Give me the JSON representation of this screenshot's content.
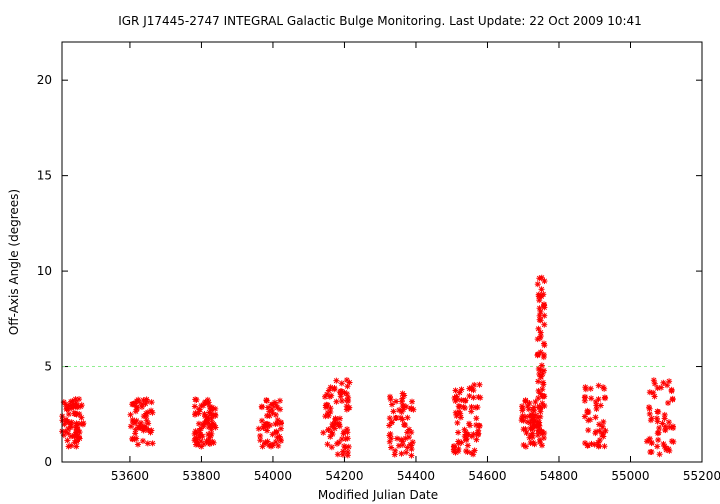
{
  "chart_data": {
    "type": "scatter",
    "title": "IGR J17445-2747   INTEGRAL Galactic Bulge Monitoring.  Last Update: 22 Oct 2009 10:41",
    "xlabel": "Modified Julian Date",
    "ylabel": "Off-Axis Angle (degrees)",
    "xlim": [
      53410,
      55200
    ],
    "ylim": [
      0,
      22
    ],
    "x_ticks": [
      53600,
      53800,
      54000,
      54200,
      54400,
      54600,
      54800,
      55000,
      55200
    ],
    "y_ticks": [
      0,
      5,
      10,
      15,
      20
    ],
    "reference_line": {
      "y": 5,
      "style": "dashed",
      "color": "#90ee90"
    },
    "marker": {
      "shape": "asterisk",
      "color": "#ff0000"
    },
    "clusters": [
      {
        "x_range": [
          53410,
          53470
        ],
        "y_range": [
          0.8,
          3.3
        ],
        "n": 70
      },
      {
        "x_range": [
          53600,
          53665
        ],
        "y_range": [
          0.9,
          3.3
        ],
        "n": 55
      },
      {
        "x_range": [
          53780,
          53840
        ],
        "y_range": [
          0.8,
          3.3
        ],
        "n": 75
      },
      {
        "x_range": [
          53960,
          54025
        ],
        "y_range": [
          0.8,
          3.3
        ],
        "n": 55
      },
      {
        "x_range": [
          54140,
          54215
        ],
        "y_range": [
          0.3,
          4.3
        ],
        "n": 75
      },
      {
        "x_range": [
          54325,
          54395
        ],
        "y_range": [
          0.3,
          3.7
        ],
        "n": 55
      },
      {
        "x_range": [
          54505,
          54580
        ],
        "y_range": [
          0.4,
          4.2
        ],
        "n": 70
      },
      {
        "x_range": [
          54695,
          54750
        ],
        "y_range": [
          0.8,
          3.3
        ],
        "n": 60
      },
      {
        "x_range": [
          54740,
          54760
        ],
        "y_range": [
          0.8,
          10.0
        ],
        "n": 70
      },
      {
        "x_range": [
          54870,
          54935
        ],
        "y_range": [
          0.8,
          4.1
        ],
        "n": 45
      },
      {
        "x_range": [
          55045,
          55120
        ],
        "y_range": [
          0.4,
          4.3
        ],
        "n": 55
      }
    ]
  }
}
